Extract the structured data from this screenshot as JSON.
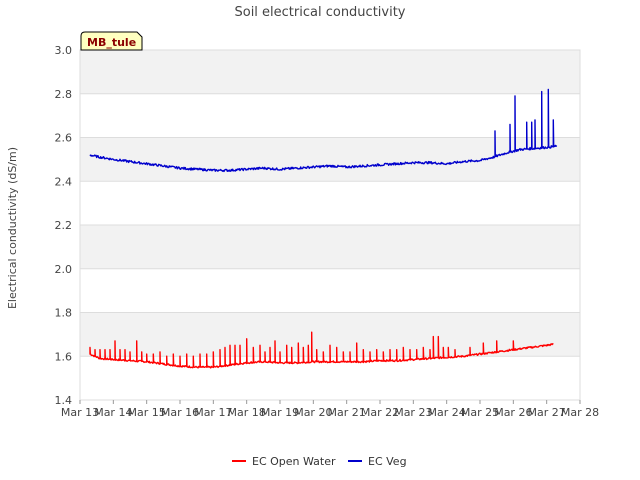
{
  "chart_data": {
    "type": "line",
    "title": "Soil electrical conductivity",
    "xlabel": "",
    "ylabel": "Electrical conductivity (dS/m)",
    "site_label": "MB_tule",
    "xlim": [
      13,
      28
    ],
    "ylim": [
      1.4,
      3.0
    ],
    "x_ticks": [
      13,
      14,
      15,
      16,
      17,
      18,
      19,
      20,
      21,
      22,
      23,
      24,
      25,
      26,
      27,
      28
    ],
    "x_tick_labels": [
      "Mar 13",
      "Mar 14",
      "Mar 15",
      "Mar 16",
      "Mar 17",
      "Mar 18",
      "Mar 19",
      "Mar 20",
      "Mar 21",
      "Mar 22",
      "Mar 23",
      "Mar 24",
      "Mar 25",
      "Mar 26",
      "Mar 27",
      "Mar 28"
    ],
    "y_ticks": [
      1.4,
      1.6,
      1.8,
      2.0,
      2.2,
      2.4,
      2.6,
      2.8,
      3.0
    ],
    "y_tick_labels": [
      "1.4",
      "1.6",
      "1.8",
      "2.0",
      "2.2",
      "2.4",
      "2.6",
      "2.8",
      "3.0"
    ],
    "grid": true,
    "legend_position": "bottom",
    "series": [
      {
        "name": "EC Open Water",
        "color": "#ff0000",
        "baseline": {
          "x": [
            13.3,
            13.6,
            14.0,
            14.5,
            15.0,
            15.5,
            16.0,
            16.5,
            17.0,
            17.5,
            18.0,
            18.5,
            19.0,
            19.5,
            20.0,
            20.5,
            21.0,
            21.5,
            22.0,
            22.5,
            23.0,
            23.5,
            24.0,
            24.5,
            25.0,
            25.5,
            26.0,
            26.5,
            27.0,
            27.2
          ],
          "y": [
            1.61,
            1.59,
            1.585,
            1.58,
            1.575,
            1.565,
            1.555,
            1.55,
            1.55,
            1.56,
            1.57,
            1.575,
            1.57,
            1.57,
            1.575,
            1.575,
            1.575,
            1.575,
            1.58,
            1.58,
            1.585,
            1.59,
            1.595,
            1.6,
            1.61,
            1.62,
            1.63,
            1.64,
            1.65,
            1.655
          ]
        },
        "spikes": [
          {
            "x": 13.3,
            "y": 1.64
          },
          {
            "x": 13.45,
            "y": 1.63
          },
          {
            "x": 13.6,
            "y": 1.63
          },
          {
            "x": 13.75,
            "y": 1.63
          },
          {
            "x": 13.9,
            "y": 1.63
          },
          {
            "x": 14.05,
            "y": 1.67
          },
          {
            "x": 14.2,
            "y": 1.63
          },
          {
            "x": 14.35,
            "y": 1.63
          },
          {
            "x": 14.5,
            "y": 1.62
          },
          {
            "x": 14.7,
            "y": 1.67
          },
          {
            "x": 14.85,
            "y": 1.62
          },
          {
            "x": 15.0,
            "y": 1.61
          },
          {
            "x": 15.2,
            "y": 1.61
          },
          {
            "x": 15.4,
            "y": 1.62
          },
          {
            "x": 15.6,
            "y": 1.6
          },
          {
            "x": 15.8,
            "y": 1.61
          },
          {
            "x": 16.0,
            "y": 1.6
          },
          {
            "x": 16.2,
            "y": 1.61
          },
          {
            "x": 16.4,
            "y": 1.6
          },
          {
            "x": 16.6,
            "y": 1.61
          },
          {
            "x": 16.8,
            "y": 1.61
          },
          {
            "x": 17.0,
            "y": 1.62
          },
          {
            "x": 17.2,
            "y": 1.63
          },
          {
            "x": 17.35,
            "y": 1.64
          },
          {
            "x": 17.5,
            "y": 1.65
          },
          {
            "x": 17.65,
            "y": 1.65
          },
          {
            "x": 17.8,
            "y": 1.65
          },
          {
            "x": 18.0,
            "y": 1.68
          },
          {
            "x": 18.2,
            "y": 1.64
          },
          {
            "x": 18.4,
            "y": 1.65
          },
          {
            "x": 18.55,
            "y": 1.62
          },
          {
            "x": 18.7,
            "y": 1.64
          },
          {
            "x": 18.85,
            "y": 1.67
          },
          {
            "x": 19.0,
            "y": 1.62
          },
          {
            "x": 19.2,
            "y": 1.65
          },
          {
            "x": 19.35,
            "y": 1.64
          },
          {
            "x": 19.55,
            "y": 1.66
          },
          {
            "x": 19.7,
            "y": 1.64
          },
          {
            "x": 19.85,
            "y": 1.65
          },
          {
            "x": 19.95,
            "y": 1.71
          },
          {
            "x": 20.1,
            "y": 1.63
          },
          {
            "x": 20.3,
            "y": 1.62
          },
          {
            "x": 20.5,
            "y": 1.65
          },
          {
            "x": 20.7,
            "y": 1.64
          },
          {
            "x": 20.9,
            "y": 1.62
          },
          {
            "x": 21.1,
            "y": 1.62
          },
          {
            "x": 21.3,
            "y": 1.66
          },
          {
            "x": 21.5,
            "y": 1.63
          },
          {
            "x": 21.7,
            "y": 1.62
          },
          {
            "x": 21.9,
            "y": 1.63
          },
          {
            "x": 22.1,
            "y": 1.62
          },
          {
            "x": 22.3,
            "y": 1.63
          },
          {
            "x": 22.5,
            "y": 1.63
          },
          {
            "x": 22.7,
            "y": 1.64
          },
          {
            "x": 22.9,
            "y": 1.63
          },
          {
            "x": 23.1,
            "y": 1.63
          },
          {
            "x": 23.3,
            "y": 1.64
          },
          {
            "x": 23.5,
            "y": 1.63
          },
          {
            "x": 23.6,
            "y": 1.69
          },
          {
            "x": 23.75,
            "y": 1.69
          },
          {
            "x": 23.9,
            "y": 1.64
          },
          {
            "x": 24.05,
            "y": 1.64
          },
          {
            "x": 24.25,
            "y": 1.63
          },
          {
            "x": 24.7,
            "y": 1.64
          },
          {
            "x": 25.1,
            "y": 1.66
          },
          {
            "x": 25.5,
            "y": 1.67
          },
          {
            "x": 26.0,
            "y": 1.67
          }
        ]
      },
      {
        "name": "EC Veg",
        "color": "#0000cc",
        "baseline": {
          "x": [
            13.3,
            13.6,
            14.0,
            14.5,
            15.0,
            15.5,
            16.0,
            16.5,
            17.0,
            17.5,
            18.0,
            18.5,
            19.0,
            19.5,
            20.0,
            20.5,
            21.0,
            21.5,
            22.0,
            22.5,
            23.0,
            23.5,
            24.0,
            24.5,
            25.0,
            25.4,
            25.8,
            26.2,
            26.6,
            27.0,
            27.3
          ],
          "y": [
            2.52,
            2.51,
            2.5,
            2.49,
            2.48,
            2.47,
            2.46,
            2.455,
            2.45,
            2.45,
            2.455,
            2.46,
            2.455,
            2.46,
            2.465,
            2.47,
            2.465,
            2.47,
            2.475,
            2.48,
            2.485,
            2.485,
            2.48,
            2.49,
            2.495,
            2.51,
            2.53,
            2.545,
            2.55,
            2.555,
            2.56
          ]
        },
        "spikes": [
          {
            "x": 25.45,
            "y": 2.63
          },
          {
            "x": 25.9,
            "y": 2.66
          },
          {
            "x": 26.05,
            "y": 2.79
          },
          {
            "x": 26.4,
            "y": 2.67
          },
          {
            "x": 26.55,
            "y": 2.67
          },
          {
            "x": 26.65,
            "y": 2.68
          },
          {
            "x": 26.85,
            "y": 2.81
          },
          {
            "x": 27.05,
            "y": 2.82
          },
          {
            "x": 27.2,
            "y": 2.68
          },
          {
            "x": 27.32,
            "y": 2.68
          }
        ]
      }
    ]
  }
}
